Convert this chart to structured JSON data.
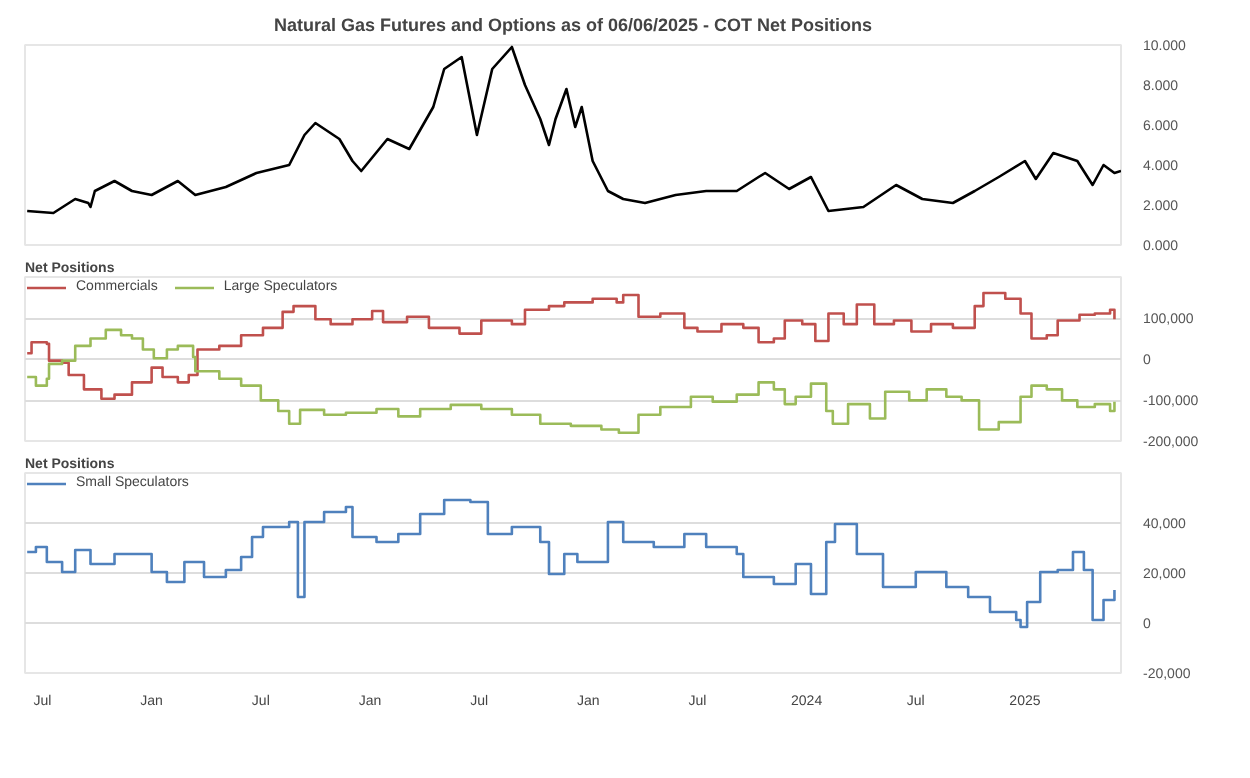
{
  "chart_data": [
    {
      "type": "line",
      "title": "Natural Gas Futures and Options as of 06/06/2025 - COT Net Positions",
      "grid": false,
      "tick_labels": "y",
      "xlim": [
        2020.42,
        2025.44
      ],
      "ylim": [
        0,
        10
      ],
      "yticks": [
        {
          "value": 0,
          "label": "0.000"
        },
        {
          "value": 2,
          "label": "2.000"
        },
        {
          "value": 4,
          "label": "4.000"
        },
        {
          "value": 6,
          "label": "6.000"
        },
        {
          "value": 8,
          "label": "8.000"
        },
        {
          "value": 10,
          "label": "10.000"
        }
      ],
      "series": [
        {
          "color": "#000000",
          "x": [
            2020.43,
            2020.55,
            2020.65,
            2020.71,
            2020.72,
            2020.74,
            2020.83,
            2020.91,
            2021.0,
            2021.12,
            2021.2,
            2021.34,
            2021.48,
            2021.63,
            2021.7,
            2021.75,
            2021.86,
            2021.92,
            2021.96,
            2022.08,
            2022.18,
            2022.29,
            2022.34,
            2022.42,
            2022.49,
            2022.56,
            2022.65,
            2022.71,
            2022.78,
            2022.82,
            2022.85,
            2022.9,
            2022.94,
            2022.97,
            2023.02,
            2023.09,
            2023.16,
            2023.26,
            2023.4,
            2023.54,
            2023.68,
            2023.78,
            2023.81,
            2023.92,
            2024.02,
            2024.1,
            2024.26,
            2024.41,
            2024.53,
            2024.67,
            2024.77,
            2024.88,
            2025.0,
            2025.05,
            2025.13,
            2025.24,
            2025.31,
            2025.36,
            2025.41,
            2025.44
          ],
          "values": [
            1.7,
            1.6,
            2.3,
            2.1,
            1.9,
            2.7,
            3.2,
            2.7,
            2.5,
            3.2,
            2.5,
            2.9,
            3.6,
            4.0,
            5.5,
            6.1,
            5.3,
            4.2,
            3.7,
            5.3,
            4.8,
            6.9,
            8.8,
            9.4,
            5.5,
            8.8,
            9.9,
            8.0,
            6.3,
            5.0,
            6.3,
            7.8,
            5.9,
            6.9,
            4.2,
            2.7,
            2.3,
            2.1,
            2.5,
            2.7,
            2.7,
            3.4,
            3.6,
            2.8,
            3.4,
            1.7,
            1.9,
            3.0,
            2.3,
            2.1,
            2.7,
            3.4,
            4.2,
            3.3,
            4.6,
            4.2,
            3.0,
            4.0,
            3.6,
            3.7
          ]
        }
      ]
    },
    {
      "type": "step",
      "legend_title": "Net Positions",
      "legend": "top left",
      "grid": "y",
      "tick_labels": "y",
      "xlim": [
        2020.42,
        2025.44
      ],
      "ylim": [
        -200000,
        200000
      ],
      "yticks": [
        {
          "value": -200000,
          "label": "-200,000"
        },
        {
          "value": -100000,
          "label": "-100,000"
        },
        0,
        {
          "value": 100000,
          "label": "100,000"
        },
        {
          "value": 200000,
          "label": null
        }
      ],
      "series": [
        {
          "name": "Commercials",
          "color": "#c0504d",
          "x": [
            2020.43,
            2020.45,
            2020.52,
            2020.53,
            2020.59,
            2020.62,
            2020.69,
            2020.77,
            2020.83,
            2020.91,
            2021.0,
            2021.05,
            2021.12,
            2021.17,
            2021.21,
            2021.31,
            2021.41,
            2021.51,
            2021.6,
            2021.65,
            2021.75,
            2021.82,
            2021.92,
            2022.01,
            2022.06,
            2022.17,
            2022.27,
            2022.41,
            2022.51,
            2022.65,
            2022.71,
            2022.82,
            2022.89,
            2023.02,
            2023.13,
            2023.16,
            2023.23,
            2023.33,
            2023.44,
            2023.5,
            2023.61,
            2023.71,
            2023.78,
            2023.85,
            2023.9,
            2023.98,
            2024.04,
            2024.1,
            2024.17,
            2024.23,
            2024.31,
            2024.4,
            2024.48,
            2024.57,
            2024.67,
            2024.77,
            2024.81,
            2024.91,
            2024.98,
            2025.03,
            2025.1,
            2025.15,
            2025.25,
            2025.32,
            2025.39,
            2025.41
          ],
          "values": [
            14000,
            41000,
            37000,
            -4000,
            -9000,
            -39000,
            -74000,
            -97000,
            -87000,
            -57000,
            -21000,
            -44000,
            -57000,
            -39000,
            23000,
            32000,
            58000,
            76000,
            115000,
            129000,
            97000,
            85000,
            97000,
            117000,
            90000,
            103000,
            76000,
            62000,
            94000,
            85000,
            120000,
            129000,
            138000,
            147000,
            138000,
            156000,
            103000,
            111000,
            76000,
            67000,
            85000,
            76000,
            41000,
            50000,
            94000,
            85000,
            44000,
            111000,
            85000,
            133000,
            85000,
            94000,
            67000,
            85000,
            76000,
            129000,
            161000,
            147000,
            111000,
            50000,
            58000,
            94000,
            108000,
            111000,
            120000,
            97000
          ]
        },
        {
          "name": "Large Speculators",
          "color": "#9bbb59",
          "x": [
            2020.43,
            2020.47,
            2020.52,
            2020.53,
            2020.59,
            2020.65,
            2020.72,
            2020.79,
            2020.86,
            2020.91,
            2020.96,
            2021.01,
            2021.07,
            2021.12,
            2021.19,
            2021.2,
            2021.31,
            2021.41,
            2021.5,
            2021.58,
            2021.63,
            2021.68,
            2021.79,
            2021.89,
            2022.03,
            2022.13,
            2022.23,
            2022.37,
            2022.51,
            2022.65,
            2022.78,
            2022.92,
            2023.06,
            2023.14,
            2023.23,
            2023.33,
            2023.47,
            2023.57,
            2023.68,
            2023.78,
            2023.85,
            2023.9,
            2023.95,
            2024.02,
            2024.09,
            2024.12,
            2024.19,
            2024.29,
            2024.36,
            2024.47,
            2024.55,
            2024.64,
            2024.71,
            2024.79,
            2024.88,
            2024.98,
            2025.03,
            2025.1,
            2025.17,
            2025.24,
            2025.32,
            2025.39,
            2025.41
          ],
          "values": [
            -44000,
            -65000,
            -48000,
            -12000,
            -4000,
            32000,
            50000,
            71000,
            58000,
            50000,
            23000,
            2000,
            23000,
            32000,
            5000,
            -30000,
            -48000,
            -65000,
            -101000,
            -127000,
            -158000,
            -124000,
            -136000,
            -131000,
            -122000,
            -140000,
            -122000,
            -112000,
            -122000,
            -136000,
            -158000,
            -163000,
            -172000,
            -180000,
            -136000,
            -117000,
            -92000,
            -104000,
            -87000,
            -57000,
            -74000,
            -110000,
            -92000,
            -60000,
            -127000,
            -158000,
            -110000,
            -145000,
            -80000,
            -101000,
            -74000,
            -92000,
            -101000,
            -172000,
            -154000,
            -92000,
            -65000,
            -74000,
            -101000,
            -117000,
            -110000,
            -127000,
            -104000
          ]
        }
      ]
    },
    {
      "type": "step",
      "legend_title": "Net Positions",
      "legend": "top left",
      "grid": "y",
      "xlim": [
        2020.42,
        2025.44
      ],
      "ylim": [
        -20000,
        60000
      ],
      "yticks": [
        {
          "value": -20000,
          "label": "-20,000"
        },
        0,
        {
          "value": 20000,
          "label": "20,000"
        },
        {
          "value": 40000,
          "label": "40,000"
        },
        {
          "value": 60000,
          "label": null
        }
      ],
      "xticks": [
        {
          "value": 2020.5,
          "label": "Jul"
        },
        {
          "value": 2021.0,
          "label": "Jan"
        },
        {
          "value": 2021.5,
          "label": "Jul"
        },
        {
          "value": 2022.0,
          "label": "Jan"
        },
        {
          "value": 2022.5,
          "label": "Jul"
        },
        {
          "value": 2023.0,
          "label": "Jan"
        },
        {
          "value": 2023.5,
          "label": "Jul"
        },
        {
          "value": 2024.0,
          "label": "2024"
        },
        {
          "value": 2024.5,
          "label": "Jul"
        },
        {
          "value": 2025.0,
          "label": "2025"
        }
      ],
      "series": [
        {
          "name": "Small Speculators",
          "color": "#4f81bd",
          "x": [
            2020.43,
            2020.47,
            2020.52,
            2020.59,
            2020.65,
            2020.72,
            2020.83,
            2020.96,
            2021.0,
            2021.07,
            2021.15,
            2021.24,
            2021.34,
            2021.41,
            2021.46,
            2021.51,
            2021.63,
            2021.67,
            2021.7,
            2021.79,
            2021.89,
            2021.92,
            2022.03,
            2022.13,
            2022.23,
            2022.34,
            2022.46,
            2022.54,
            2022.65,
            2022.78,
            2022.82,
            2022.89,
            2022.95,
            2023.09,
            2023.16,
            2023.3,
            2023.44,
            2023.54,
            2023.68,
            2023.71,
            2023.85,
            2023.95,
            2024.02,
            2024.09,
            2024.13,
            2024.23,
            2024.35,
            2024.5,
            2024.64,
            2024.74,
            2024.84,
            2024.96,
            2024.98,
            2025.01,
            2025.07,
            2025.15,
            2025.22,
            2025.27,
            2025.31,
            2025.36,
            2025.41
          ],
          "values": [
            28400,
            30400,
            24400,
            20400,
            29200,
            23600,
            27600,
            27600,
            20400,
            16400,
            24400,
            18400,
            21200,
            26400,
            34400,
            38400,
            40400,
            10400,
            40400,
            44400,
            46400,
            34400,
            32400,
            35600,
            43600,
            49200,
            48400,
            35600,
            38400,
            32400,
            19600,
            27600,
            24400,
            40400,
            32400,
            30400,
            35600,
            30400,
            27600,
            18400,
            15600,
            23600,
            11600,
            32400,
            39600,
            27600,
            14400,
            20400,
            14400,
            10400,
            4400,
            1200,
            -1600,
            8400,
            20400,
            21200,
            28400,
            21200,
            1200,
            9200,
            13200
          ]
        }
      ]
    }
  ]
}
